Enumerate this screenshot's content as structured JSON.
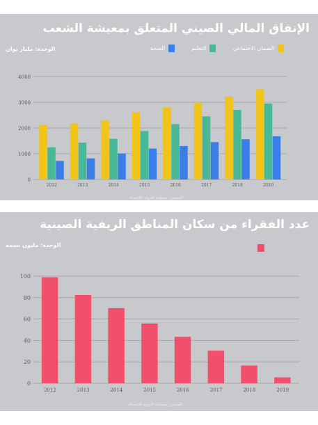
{
  "colors": {
    "social_security": "#f0c419",
    "education": "#48b896",
    "health": "#3b7fe6",
    "poverty": "#f0506c",
    "grid": "#9a9ba0",
    "tick_text": "#5a5a5a"
  },
  "chart_data": [
    {
      "type": "bar",
      "title": "الإنفاق المالي الصيني المتعلق بمعيشة الشعب",
      "unit_label": "الوحدة: مليار يوان",
      "source": "المصدر: مصلحة الدولة للإحصاء",
      "categories": [
        "2012",
        "2013",
        "2014",
        "2015",
        "2016",
        "2017",
        "2018",
        "2019"
      ],
      "series": [
        {
          "name": "الضمان الاجتماعي",
          "color": "#f0c419",
          "values": [
            2120,
            2180,
            2300,
            2620,
            2800,
            3000,
            3220,
            3500
          ]
        },
        {
          "name": "التعليم",
          "color": "#48b896",
          "values": [
            1250,
            1430,
            1580,
            1880,
            2150,
            2450,
            2700,
            2950
          ]
        },
        {
          "name": "الصحة",
          "color": "#3b7fe6",
          "values": [
            720,
            820,
            1010,
            1200,
            1300,
            1450,
            1560,
            1680
          ]
        }
      ],
      "y_ticks": [
        0,
        1000,
        2000,
        3000,
        4000
      ],
      "ylim": [
        0,
        4000
      ],
      "grid": true,
      "legend_position": "top"
    },
    {
      "type": "bar",
      "title": "عدد الفقراء من سكان المناطق الريفية الصينية",
      "unit_label": "الوحدة: مليون نسمة",
      "source": "المصدر: مصلحة الدولة للإحصاء",
      "categories": [
        "2012",
        "2013",
        "2014",
        "2015",
        "2016",
        "2017",
        "2018",
        "2019"
      ],
      "series": [
        {
          "color": "#f0506c",
          "values": [
            98.99,
            82.49,
            70.17,
            55.75,
            43.35,
            30.46,
            16.6,
            5.51
          ]
        }
      ],
      "y_ticks": [
        0,
        20,
        40,
        60,
        80,
        100
      ],
      "ylim": [
        0,
        100
      ],
      "grid": true,
      "legend_position": "top-right"
    }
  ]
}
